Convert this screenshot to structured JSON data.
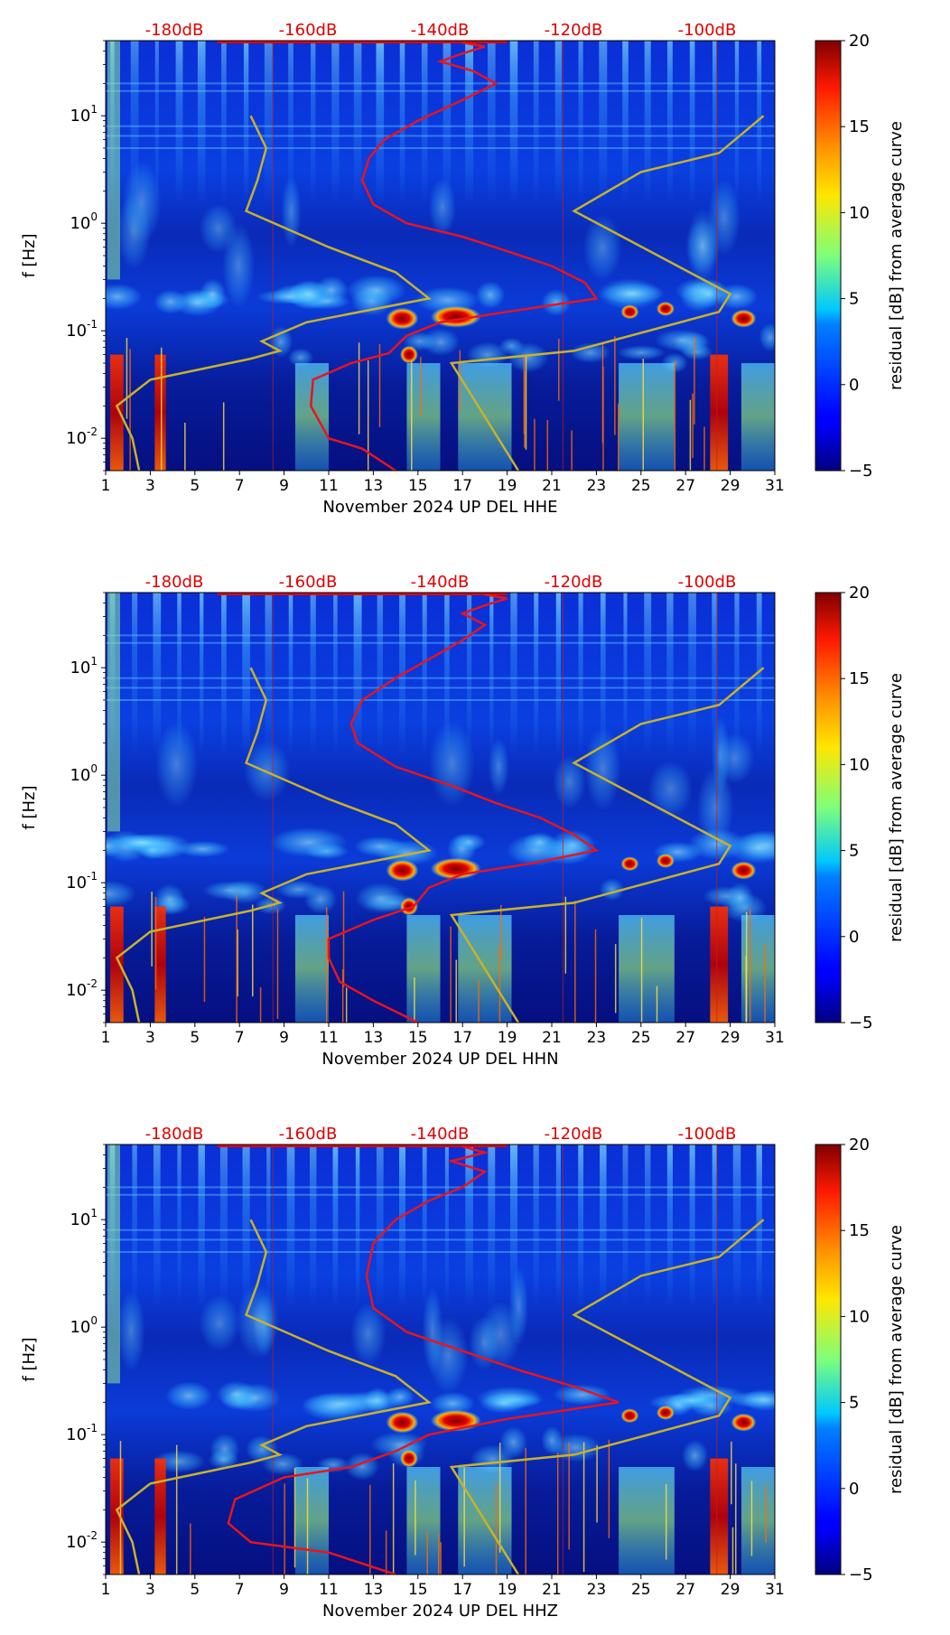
{
  "chart_data": [
    {
      "type": "heatmap",
      "channel": "HHE",
      "xlabel": "November 2024 UP DEL  HHE",
      "ylabel": "f [Hz]",
      "x_ticks": [
        "1",
        "3",
        "5",
        "7",
        "9",
        "11",
        "13",
        "15",
        "17",
        "19",
        "21",
        "23",
        "25",
        "27",
        "29",
        "31"
      ],
      "x_range": [
        1,
        31
      ],
      "y_ticks": [
        {
          "exp": "-2",
          "value": 0.01
        },
        {
          "exp": "-1",
          "value": 0.1
        },
        {
          "exp": "0",
          "value": 1
        },
        {
          "exp": "1",
          "value": 10
        }
      ],
      "y_range": [
        0.005,
        50
      ],
      "top_labels": [
        "-180dB",
        "-160dB",
        "-140dB",
        "-120dB",
        "-100dB"
      ],
      "colorbar": {
        "label": "residual [dB] from average curve",
        "ticks": [
          "20",
          "15",
          "10",
          "5",
          "0",
          "−5"
        ],
        "range": [
          -5,
          20
        ]
      },
      "red_curve": {
        "name": "average PSD",
        "points": [
          [
            14,
            0.005
          ],
          [
            12.5,
            0.008
          ],
          [
            11,
            0.01
          ],
          [
            10.2,
            0.02
          ],
          [
            10.3,
            0.035
          ],
          [
            12,
            0.05
          ],
          [
            13.7,
            0.062
          ],
          [
            14.5,
            0.09
          ],
          [
            16,
            0.12
          ],
          [
            19,
            0.15
          ],
          [
            23,
            0.2
          ],
          [
            22.5,
            0.28
          ],
          [
            21,
            0.4
          ],
          [
            19,
            0.55
          ],
          [
            17,
            0.75
          ],
          [
            14.5,
            1
          ],
          [
            13,
            1.5
          ],
          [
            12.5,
            2.5
          ],
          [
            12.8,
            4
          ],
          [
            13.5,
            6
          ],
          [
            15,
            9
          ],
          [
            17,
            14
          ],
          [
            18.5,
            20
          ],
          [
            17.5,
            26
          ],
          [
            16,
            32
          ],
          [
            17,
            38
          ],
          [
            18,
            44
          ],
          [
            17,
            48
          ]
        ]
      },
      "yellow_curves": [
        {
          "name": "low-noise model",
          "points": [
            [
              2.5,
              0.005
            ],
            [
              2.2,
              0.01
            ],
            [
              1.5,
              0.02
            ],
            [
              3,
              0.035
            ],
            [
              7.5,
              0.055
            ],
            [
              8.8,
              0.065
            ],
            [
              8,
              0.08
            ],
            [
              10,
              0.12
            ],
            [
              15.5,
              0.2
            ],
            [
              14,
              0.35
            ],
            [
              11,
              0.6
            ],
            [
              7.3,
              1.3
            ],
            [
              7.8,
              2.5
            ],
            [
              8.2,
              5
            ],
            [
              7.5,
              10
            ]
          ]
        },
        {
          "name": "high-noise model",
          "points": [
            [
              19.5,
              0.005
            ],
            [
              16.5,
              0.05
            ],
            [
              22,
              0.065
            ],
            [
              28.5,
              0.15
            ],
            [
              29,
              0.22
            ],
            [
              22,
              1.3
            ],
            [
              25,
              3
            ],
            [
              28.5,
              4.5
            ],
            [
              30.5,
              10
            ]
          ]
        }
      ]
    },
    {
      "type": "heatmap",
      "channel": "HHN",
      "xlabel": "November 2024 UP DEL  HHN",
      "ylabel": "f [Hz]",
      "x_ticks": [
        "1",
        "3",
        "5",
        "7",
        "9",
        "11",
        "13",
        "15",
        "17",
        "19",
        "21",
        "23",
        "25",
        "27",
        "29",
        "31"
      ],
      "x_range": [
        1,
        31
      ],
      "y_ticks": [
        {
          "exp": "-2",
          "value": 0.01
        },
        {
          "exp": "-1",
          "value": 0.1
        },
        {
          "exp": "0",
          "value": 1
        },
        {
          "exp": "1",
          "value": 10
        }
      ],
      "y_range": [
        0.005,
        50
      ],
      "top_labels": [
        "-180dB",
        "-160dB",
        "-140dB",
        "-120dB",
        "-100dB"
      ],
      "colorbar": {
        "label": "residual [dB] from average curve",
        "ticks": [
          "20",
          "15",
          "10",
          "5",
          "0",
          "−5"
        ],
        "range": [
          -5,
          20
        ]
      },
      "red_curve": {
        "name": "average PSD",
        "points": [
          [
            15,
            0.005
          ],
          [
            13,
            0.008
          ],
          [
            11.5,
            0.012
          ],
          [
            11,
            0.02
          ],
          [
            11,
            0.03
          ],
          [
            13,
            0.045
          ],
          [
            14.8,
            0.06
          ],
          [
            15.5,
            0.09
          ],
          [
            17,
            0.12
          ],
          [
            20,
            0.15
          ],
          [
            23,
            0.2
          ],
          [
            22,
            0.28
          ],
          [
            20.5,
            0.4
          ],
          [
            18.5,
            0.55
          ],
          [
            16.5,
            0.8
          ],
          [
            14,
            1.2
          ],
          [
            12.3,
            2
          ],
          [
            12,
            3
          ],
          [
            12.5,
            5
          ],
          [
            14,
            8
          ],
          [
            15.5,
            12
          ],
          [
            17,
            18
          ],
          [
            18,
            25
          ],
          [
            17,
            32
          ],
          [
            18,
            38
          ],
          [
            19,
            44
          ],
          [
            18,
            48
          ]
        ]
      },
      "yellow_curves": [
        {
          "name": "low-noise model",
          "points": [
            [
              2.5,
              0.005
            ],
            [
              2.2,
              0.01
            ],
            [
              1.5,
              0.02
            ],
            [
              3,
              0.035
            ],
            [
              7.5,
              0.055
            ],
            [
              8.8,
              0.065
            ],
            [
              8,
              0.08
            ],
            [
              10,
              0.12
            ],
            [
              15.5,
              0.2
            ],
            [
              14,
              0.35
            ],
            [
              11,
              0.6
            ],
            [
              7.3,
              1.3
            ],
            [
              7.8,
              2.5
            ],
            [
              8.2,
              5
            ],
            [
              7.5,
              10
            ]
          ]
        },
        {
          "name": "high-noise model",
          "points": [
            [
              19.5,
              0.005
            ],
            [
              16.5,
              0.05
            ],
            [
              22,
              0.065
            ],
            [
              28.5,
              0.15
            ],
            [
              29,
              0.22
            ],
            [
              22,
              1.3
            ],
            [
              25,
              3
            ],
            [
              28.5,
              4.5
            ],
            [
              30.5,
              10
            ]
          ]
        }
      ]
    },
    {
      "type": "heatmap",
      "channel": "HHZ",
      "xlabel": "November 2024 UP DEL  HHZ",
      "ylabel": "f [Hz]",
      "x_ticks": [
        "1",
        "3",
        "5",
        "7",
        "9",
        "11",
        "13",
        "15",
        "17",
        "19",
        "21",
        "23",
        "25",
        "27",
        "29",
        "31"
      ],
      "x_range": [
        1,
        31
      ],
      "y_ticks": [
        {
          "exp": "-2",
          "value": 0.01
        },
        {
          "exp": "-1",
          "value": 0.1
        },
        {
          "exp": "0",
          "value": 1
        },
        {
          "exp": "1",
          "value": 10
        }
      ],
      "y_range": [
        0.005,
        50
      ],
      "top_labels": [
        "-180dB",
        "-160dB",
        "-140dB",
        "-120dB",
        "-100dB"
      ],
      "colorbar": {
        "label": "residual [dB] from average curve",
        "ticks": [
          "20",
          "15",
          "10",
          "5",
          "0",
          "−5"
        ],
        "range": [
          -5,
          20
        ]
      },
      "red_curve": {
        "name": "average PSD",
        "points": [
          [
            14,
            0.005
          ],
          [
            11,
            0.008
          ],
          [
            7.5,
            0.01
          ],
          [
            6.5,
            0.015
          ],
          [
            6.8,
            0.025
          ],
          [
            9,
            0.04
          ],
          [
            12,
            0.05
          ],
          [
            14,
            0.07
          ],
          [
            15.5,
            0.1
          ],
          [
            19,
            0.14
          ],
          [
            24,
            0.2
          ],
          [
            22,
            0.28
          ],
          [
            19.5,
            0.4
          ],
          [
            17,
            0.6
          ],
          [
            14.5,
            0.9
          ],
          [
            13,
            1.5
          ],
          [
            12.7,
            3
          ],
          [
            13,
            6
          ],
          [
            14,
            10
          ],
          [
            15.5,
            15
          ],
          [
            17,
            20
          ],
          [
            18,
            28
          ],
          [
            16.5,
            35
          ],
          [
            18,
            42
          ],
          [
            17,
            48
          ]
        ]
      },
      "yellow_curves": [
        {
          "name": "low-noise model",
          "points": [
            [
              2.5,
              0.005
            ],
            [
              2.2,
              0.01
            ],
            [
              1.5,
              0.02
            ],
            [
              3,
              0.035
            ],
            [
              7.5,
              0.055
            ],
            [
              8.8,
              0.065
            ],
            [
              8,
              0.08
            ],
            [
              10,
              0.12
            ],
            [
              15.5,
              0.2
            ],
            [
              14,
              0.35
            ],
            [
              11,
              0.6
            ],
            [
              7.3,
              1.3
            ],
            [
              7.8,
              2.5
            ],
            [
              8.2,
              5
            ],
            [
              7.5,
              10
            ]
          ]
        },
        {
          "name": "high-noise model",
          "points": [
            [
              19.5,
              0.005
            ],
            [
              16.5,
              0.05
            ],
            [
              22,
              0.065
            ],
            [
              28.5,
              0.15
            ],
            [
              29,
              0.22
            ],
            [
              22,
              1.3
            ],
            [
              25,
              3
            ],
            [
              28.5,
              4.5
            ],
            [
              30.5,
              10
            ]
          ]
        }
      ]
    }
  ]
}
